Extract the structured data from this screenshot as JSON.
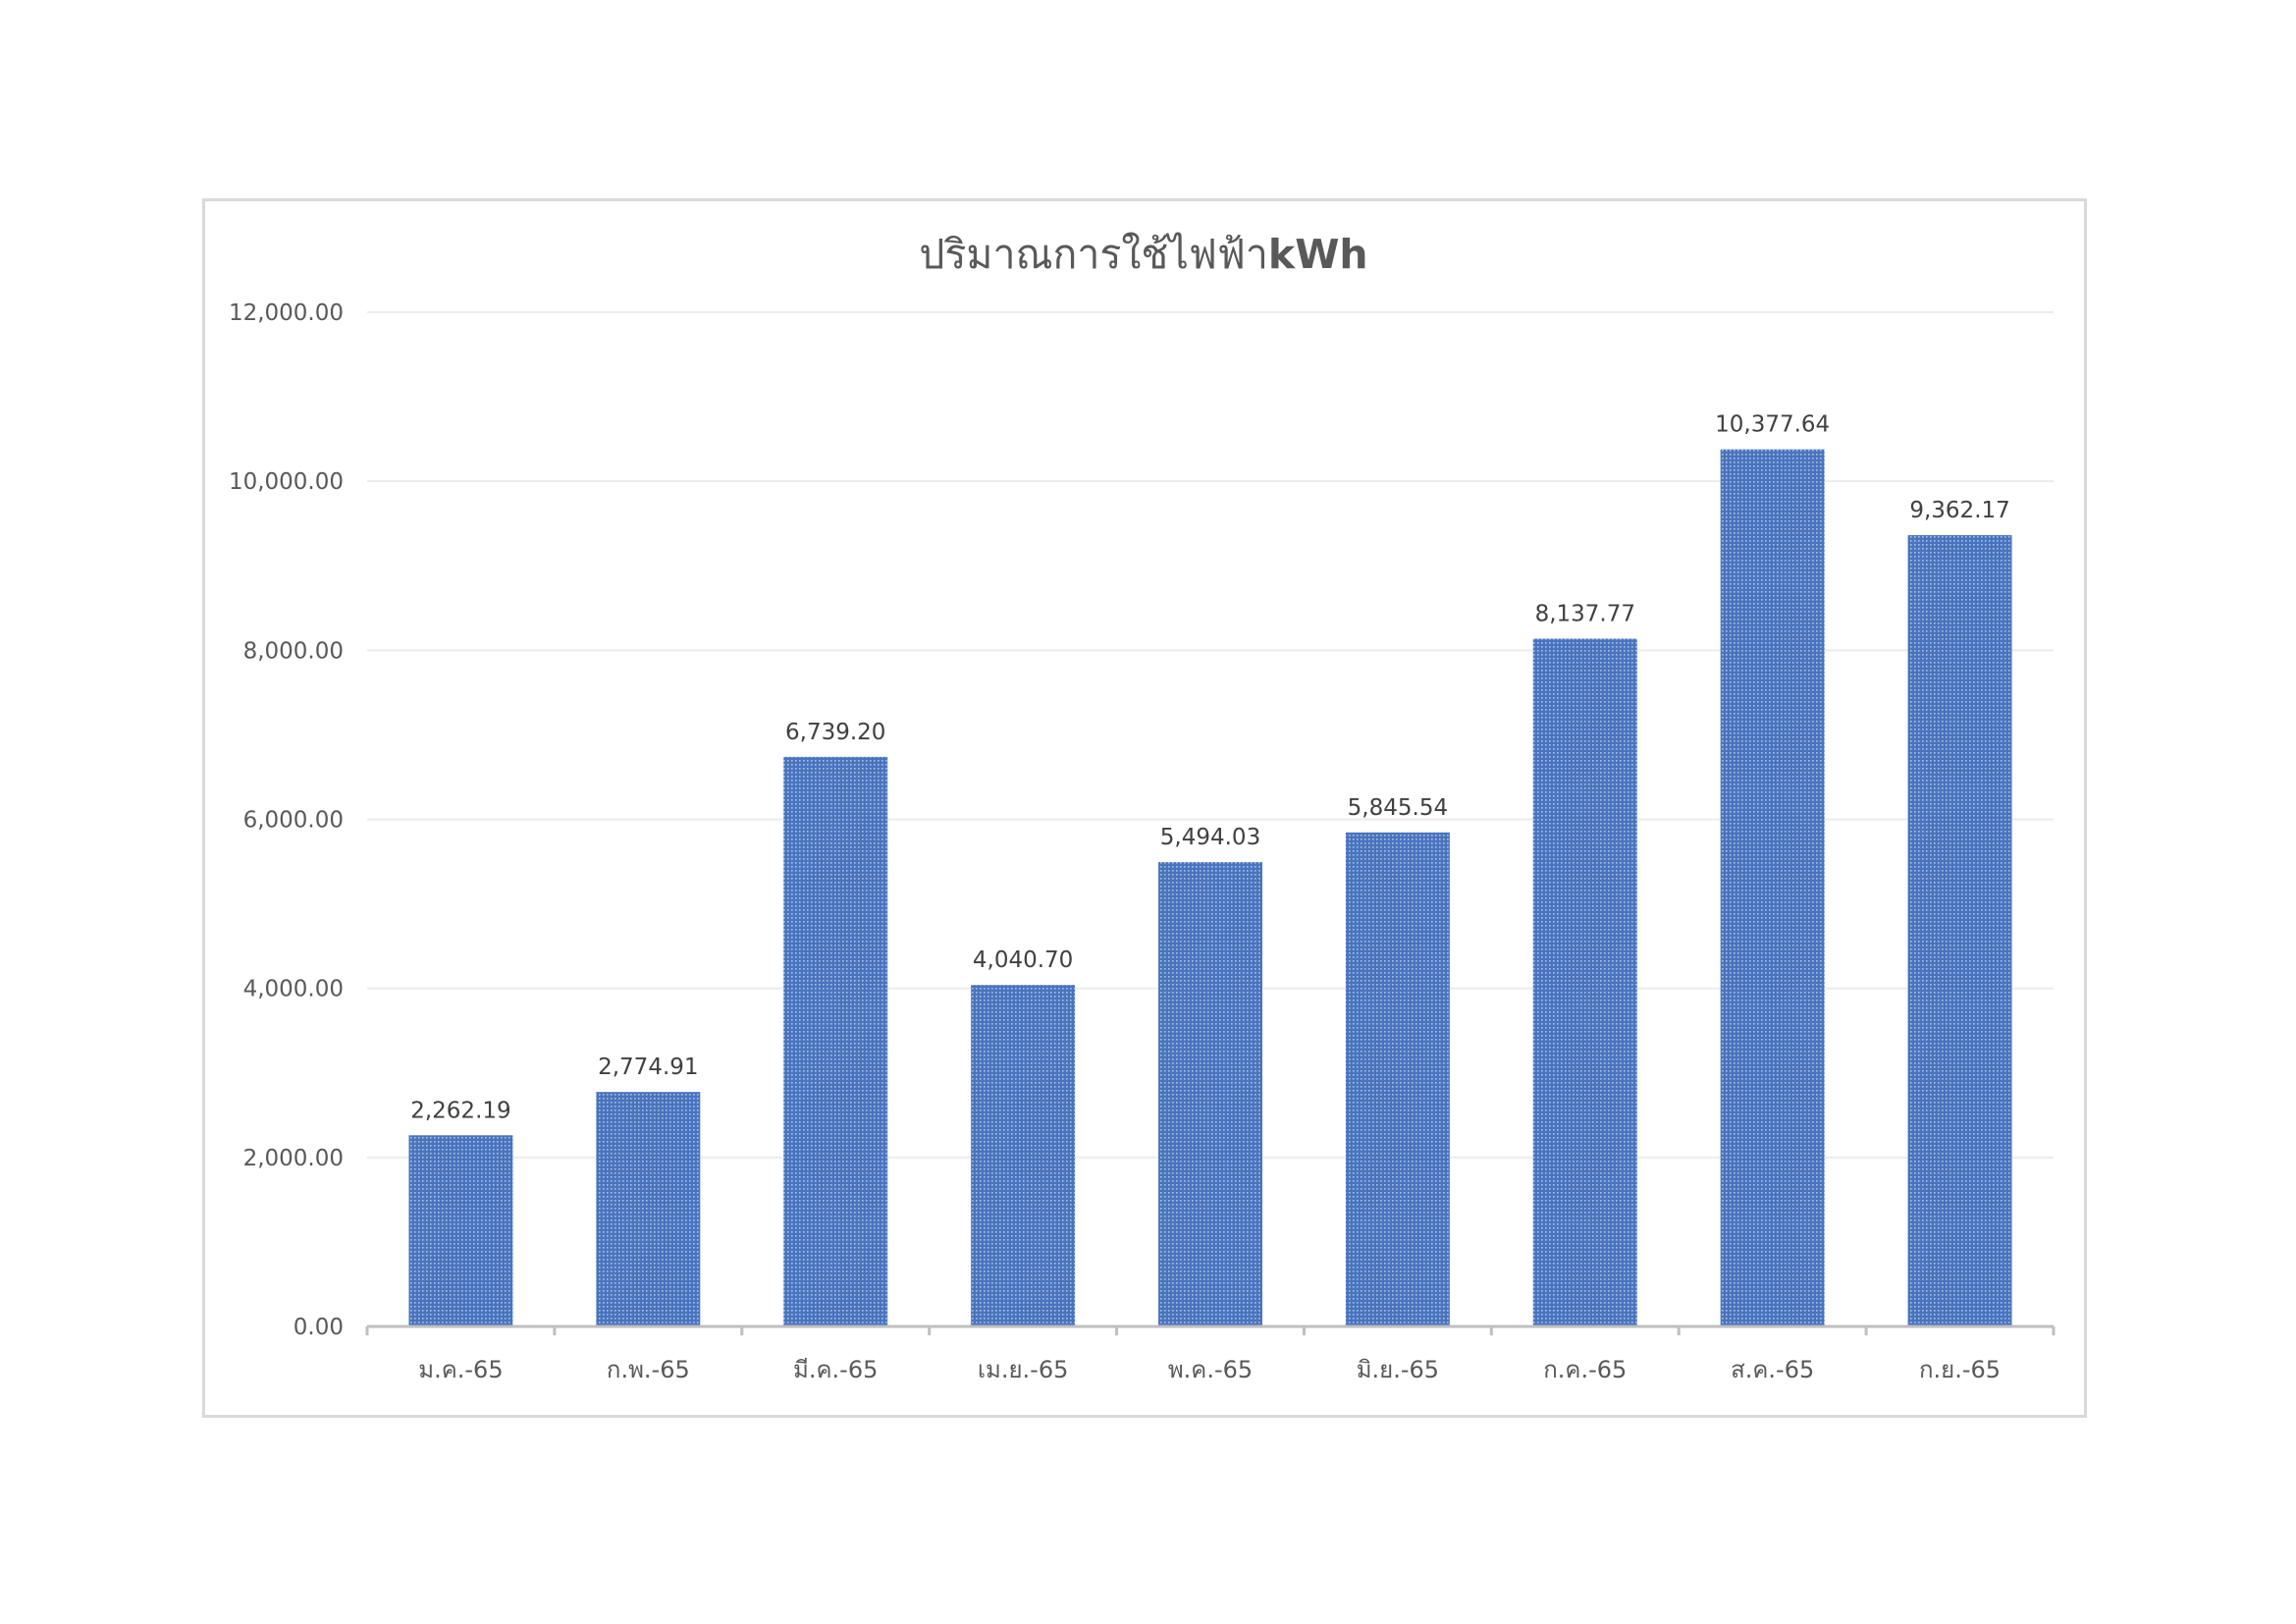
{
  "colors": {
    "bar_fill": "#4a74bd",
    "bar_dot": "#a9c1ea"
  },
  "chart_data": {
    "type": "bar",
    "title": "ปริมาณการใช้ไฟฟ้า",
    "title_unit": "kWh",
    "xlabel": "",
    "ylabel": "",
    "categories": [
      "ม.ค.-65",
      "ก.พ.-65",
      "มี.ค.-65",
      "เม.ย.-65",
      "พ.ค.-65",
      "มิ.ย.-65",
      "ก.ค.-65",
      "ส.ค.-65",
      "ก.ย.-65"
    ],
    "values": [
      2262.19,
      2774.91,
      6739.2,
      4040.7,
      5494.03,
      5845.54,
      8137.77,
      10377.64,
      9362.17
    ],
    "data_labels": [
      "2,262.19",
      "2,774.91",
      "6,739.20",
      "4,040.70",
      "5,494.03",
      "5,845.54",
      "8,137.77",
      "10,377.64",
      "9,362.17"
    ],
    "ylim": [
      0,
      12000
    ],
    "y_ticks": [
      0,
      2000,
      4000,
      6000,
      8000,
      10000,
      12000
    ],
    "y_tick_labels": [
      "0.00",
      "2,000.00",
      "4,000.00",
      "6,000.00",
      "8,000.00",
      "10,000.00",
      "12,000.00"
    ],
    "grid": true,
    "legend": "none"
  }
}
